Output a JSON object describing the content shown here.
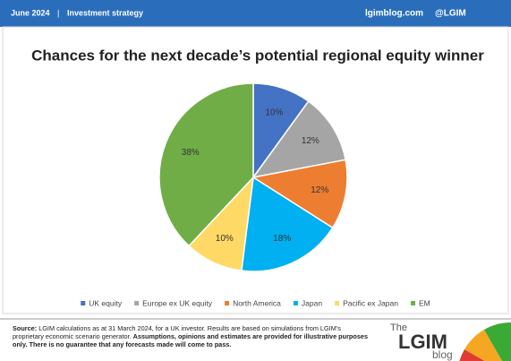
{
  "header": {
    "date": "June 2024",
    "section": "Investment strategy",
    "site": "lgimblog.com",
    "handle": "@LGIM"
  },
  "chart_data": {
    "type": "pie",
    "title": "Chances for the next decade’s potential regional equity winner",
    "categories": [
      "UK equity",
      "Europe ex UK equity",
      "North America",
      "Japan",
      "Pacific ex Japan",
      "EM"
    ],
    "values": [
      10,
      12,
      12,
      18,
      10,
      38
    ],
    "value_labels": [
      "10%",
      "12%",
      "12%",
      "18%",
      "10%",
      "38%"
    ],
    "colors": [
      "#4472c4",
      "#a5a5a5",
      "#ed7d31",
      "#00b0f0",
      "#ffd966",
      "#70ad47"
    ],
    "legend": "bottom"
  },
  "footer": {
    "source_label": "Source:",
    "text": "LGIM calculations as at 31 March 2024, for a UK investor. Results are based on simulations from LGIM’s proprietary economic scenario generator.",
    "disclaimer": "Assumptions, opinions and estimates are provided for illustrative purposes only. There is no guarantee that any forecasts made will come to pass."
  },
  "logo": {
    "prefix": "The",
    "brand": "LGIM",
    "suffix": "blog"
  }
}
